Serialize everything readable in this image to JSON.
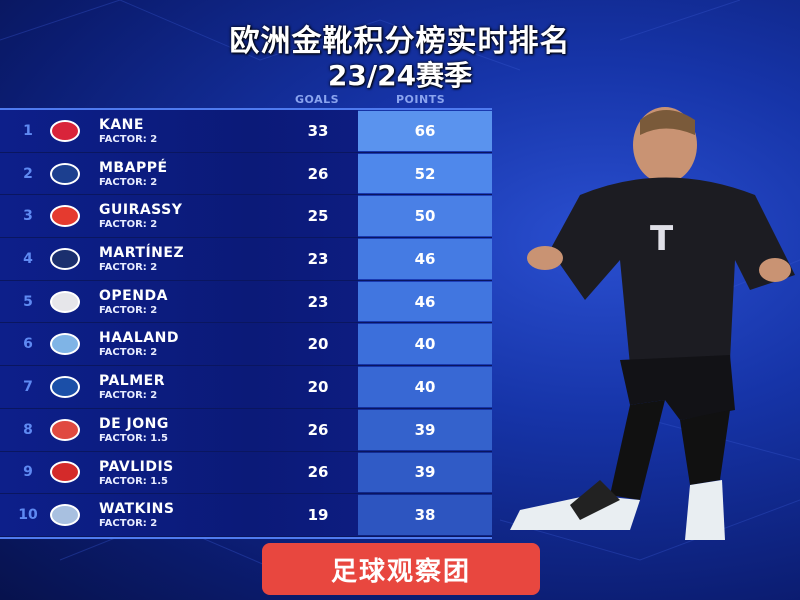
{
  "title": "欧洲金靴积分榜实时排名",
  "subtitle": "23/24赛季",
  "headers": {
    "goals": "GOALS",
    "points": "POINTS"
  },
  "rows": [
    {
      "rank": "1",
      "name": "KANE",
      "factor": "FACTOR: 2",
      "goals": "33",
      "points": "66",
      "club_icon": "bayern-crest-icon",
      "crest_color": "#d9243a"
    },
    {
      "rank": "2",
      "name": "MBAPPÉ",
      "factor": "FACTOR: 2",
      "goals": "26",
      "points": "52",
      "club_icon": "psg-crest-icon",
      "crest_color": "#1c3f8f"
    },
    {
      "rank": "3",
      "name": "GUIRASSY",
      "factor": "FACTOR: 2",
      "goals": "25",
      "points": "50",
      "club_icon": "stuttgart-crest-icon",
      "crest_color": "#e53a2f"
    },
    {
      "rank": "4",
      "name": "MARTÍNEZ",
      "factor": "FACTOR: 2",
      "goals": "23",
      "points": "46",
      "club_icon": "inter-crest-icon",
      "crest_color": "#1b2f6e"
    },
    {
      "rank": "5",
      "name": "OPENDA",
      "factor": "FACTOR: 2",
      "goals": "23",
      "points": "46",
      "club_icon": "leipzig-crest-icon",
      "crest_color": "#e6e6ea"
    },
    {
      "rank": "6",
      "name": "HAALAND",
      "factor": "FACTOR: 2",
      "goals": "20",
      "points": "40",
      "club_icon": "man-city-crest-icon",
      "crest_color": "#7fb4e6"
    },
    {
      "rank": "7",
      "name": "PALMER",
      "factor": "FACTOR: 2",
      "goals": "20",
      "points": "40",
      "club_icon": "chelsea-crest-icon",
      "crest_color": "#1b4fa8"
    },
    {
      "rank": "8",
      "name": "DE JONG",
      "factor": "FACTOR: 1.5",
      "goals": "26",
      "points": "39",
      "club_icon": "psv-crest-icon",
      "crest_color": "#e04a40"
    },
    {
      "rank": "9",
      "name": "PAVLIDIS",
      "factor": "FACTOR: 1.5",
      "goals": "26",
      "points": "39",
      "club_icon": "az-crest-icon",
      "crest_color": "#d42a2a"
    },
    {
      "rank": "10",
      "name": "WATKINS",
      "factor": "FACTOR: 2",
      "goals": "19",
      "points": "38",
      "club_icon": "aston-villa-crest-icon",
      "crest_color": "#a8c0e0"
    }
  ],
  "points_colors": [
    "#5a93ee",
    "#4f88eb",
    "#4a80e6",
    "#457be3",
    "#4176e0",
    "#3c6fdb",
    "#3868d4",
    "#3462cc",
    "#305bc6",
    "#2d55c0"
  ],
  "brand_label": "足球观察团"
}
